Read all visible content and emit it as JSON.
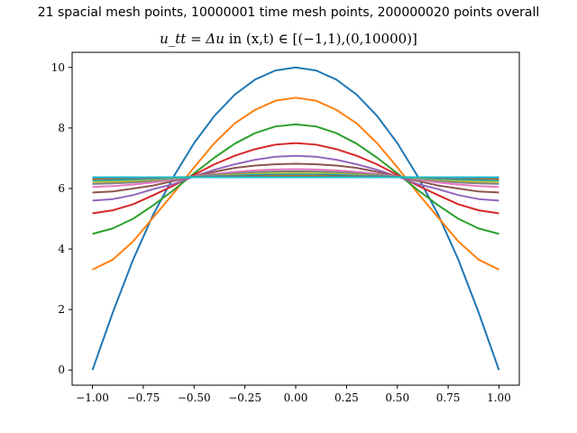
{
  "chart_data": {
    "type": "line",
    "title": "21 spacial mesh points, 10000001 time mesh points, 200000020 points overall",
    "subtitle_math": "u_tt = Δu",
    "subtitle_rest": " in (x,t) ∈ [(−1,1),(0,10000)]",
    "xlabel": "",
    "ylabel": "",
    "xlim": [
      -1.1,
      1.1
    ],
    "ylim": [
      -0.5,
      10.5
    ],
    "xticks": [
      -1.0,
      -0.75,
      -0.5,
      -0.25,
      0.0,
      0.25,
      0.5,
      0.75,
      1.0
    ],
    "xtick_labels": [
      "−1.00",
      "−0.75",
      "−0.50",
      "−0.25",
      "0.00",
      "0.25",
      "0.50",
      "0.75",
      "1.00"
    ],
    "yticks": [
      0,
      2,
      4,
      6,
      8,
      10
    ],
    "ytick_labels": [
      "0",
      "2",
      "4",
      "6",
      "8",
      "10"
    ],
    "grid": false,
    "legend": "none",
    "x": [
      -1.0,
      -0.9,
      -0.8,
      -0.7,
      -0.6,
      -0.5,
      -0.4,
      -0.3,
      -0.2,
      -0.1,
      0.0,
      0.1,
      0.2,
      0.3,
      0.4,
      0.5,
      0.6,
      0.7,
      0.8,
      0.9,
      1.0
    ],
    "series": [
      {
        "color": "#1f77b4",
        "values": [
          0.0,
          1.9,
          3.65,
          5.15,
          6.4,
          7.5,
          8.4,
          9.1,
          9.6,
          9.9,
          10.0,
          9.9,
          9.6,
          9.1,
          8.4,
          7.5,
          6.4,
          5.15,
          3.65,
          1.9,
          0.0
        ]
      },
      {
        "color": "#ff7f0e",
        "values": [
          3.32,
          3.65,
          4.25,
          5.05,
          5.85,
          6.7,
          7.5,
          8.15,
          8.6,
          8.9,
          9.0,
          8.9,
          8.6,
          8.15,
          7.5,
          6.7,
          5.85,
          5.05,
          4.25,
          3.65,
          3.32
        ]
      },
      {
        "color": "#2ca02c",
        "values": [
          4.5,
          4.68,
          5.0,
          5.45,
          5.95,
          6.5,
          7.02,
          7.48,
          7.83,
          8.05,
          8.12,
          8.05,
          7.83,
          7.48,
          7.02,
          6.5,
          5.95,
          5.45,
          5.0,
          4.68,
          4.5
        ]
      },
      {
        "color": "#d62728",
        "values": [
          5.18,
          5.28,
          5.48,
          5.78,
          6.1,
          6.45,
          6.8,
          7.08,
          7.3,
          7.45,
          7.5,
          7.45,
          7.3,
          7.08,
          6.8,
          6.45,
          6.1,
          5.78,
          5.48,
          5.28,
          5.18
        ]
      },
      {
        "color": "#9467bd",
        "values": [
          5.6,
          5.65,
          5.78,
          5.98,
          6.15,
          6.4,
          6.62,
          6.8,
          6.95,
          7.05,
          7.08,
          7.05,
          6.95,
          6.8,
          6.62,
          6.4,
          6.15,
          5.98,
          5.78,
          5.65,
          5.6
        ]
      },
      {
        "color": "#8c564b",
        "values": [
          5.87,
          5.9,
          6.0,
          6.1,
          6.25,
          6.4,
          6.55,
          6.68,
          6.76,
          6.8,
          6.82,
          6.8,
          6.76,
          6.68,
          6.55,
          6.4,
          6.25,
          6.1,
          6.0,
          5.9,
          5.87
        ]
      },
      {
        "color": "#e377c2",
        "values": [
          6.05,
          6.08,
          6.13,
          6.2,
          6.3,
          6.4,
          6.48,
          6.55,
          6.6,
          6.63,
          6.64,
          6.63,
          6.6,
          6.55,
          6.48,
          6.4,
          6.3,
          6.2,
          6.13,
          6.08,
          6.05
        ]
      },
      {
        "color": "#7f7f7f",
        "values": [
          6.15,
          6.17,
          6.2,
          6.26,
          6.33,
          6.39,
          6.45,
          6.5,
          6.54,
          6.56,
          6.57,
          6.56,
          6.54,
          6.5,
          6.45,
          6.39,
          6.33,
          6.26,
          6.2,
          6.17,
          6.15
        ]
      },
      {
        "color": "#bcbd22",
        "values": [
          6.22,
          6.23,
          6.26,
          6.29,
          6.34,
          6.38,
          6.42,
          6.46,
          6.48,
          6.5,
          6.5,
          6.5,
          6.48,
          6.46,
          6.42,
          6.38,
          6.34,
          6.29,
          6.26,
          6.23,
          6.22
        ]
      },
      {
        "color": "#17becf",
        "values": [
          6.27,
          6.28,
          6.3,
          6.32,
          6.35,
          6.38,
          6.41,
          6.43,
          6.45,
          6.46,
          6.46,
          6.46,
          6.45,
          6.43,
          6.41,
          6.38,
          6.35,
          6.32,
          6.3,
          6.28,
          6.27
        ]
      },
      {
        "color": "#1f77b4",
        "values": [
          6.3,
          6.31,
          6.32,
          6.34,
          6.36,
          6.38,
          6.4,
          6.42,
          6.43,
          6.44,
          6.44,
          6.44,
          6.43,
          6.42,
          6.4,
          6.38,
          6.36,
          6.34,
          6.32,
          6.31,
          6.3
        ]
      },
      {
        "color": "#ff7f0e",
        "values": [
          6.32,
          6.33,
          6.34,
          6.35,
          6.36,
          6.38,
          6.39,
          6.4,
          6.41,
          6.42,
          6.42,
          6.42,
          6.41,
          6.4,
          6.39,
          6.38,
          6.36,
          6.35,
          6.34,
          6.33,
          6.32
        ]
      },
      {
        "color": "#2ca02c",
        "values": [
          6.34,
          6.34,
          6.35,
          6.36,
          6.37,
          6.38,
          6.38,
          6.39,
          6.4,
          6.4,
          6.4,
          6.4,
          6.4,
          6.39,
          6.38,
          6.38,
          6.37,
          6.36,
          6.35,
          6.34,
          6.34
        ]
      },
      {
        "color": "#d62728",
        "values": [
          6.35,
          6.35,
          6.36,
          6.36,
          6.37,
          6.37,
          6.38,
          6.38,
          6.39,
          6.39,
          6.39,
          6.39,
          6.39,
          6.38,
          6.38,
          6.37,
          6.37,
          6.36,
          6.36,
          6.35,
          6.35
        ]
      },
      {
        "color": "#9467bd",
        "values": [
          6.36,
          6.36,
          6.36,
          6.37,
          6.37,
          6.37,
          6.38,
          6.38,
          6.38,
          6.38,
          6.38,
          6.38,
          6.38,
          6.38,
          6.38,
          6.37,
          6.37,
          6.37,
          6.36,
          6.36,
          6.36
        ]
      },
      {
        "color": "#8c564b",
        "values": [
          6.36,
          6.36,
          6.37,
          6.37,
          6.37,
          6.37,
          6.37,
          6.38,
          6.38,
          6.38,
          6.38,
          6.38,
          6.38,
          6.38,
          6.37,
          6.37,
          6.37,
          6.37,
          6.37,
          6.36,
          6.36
        ]
      },
      {
        "color": "#e377c2",
        "values": [
          6.37,
          6.37,
          6.37,
          6.37,
          6.37,
          6.37,
          6.37,
          6.37,
          6.37,
          6.37,
          6.37,
          6.37,
          6.37,
          6.37,
          6.37,
          6.37,
          6.37,
          6.37,
          6.37,
          6.37,
          6.37
        ]
      },
      {
        "color": "#7f7f7f",
        "values": [
          6.37,
          6.37,
          6.37,
          6.37,
          6.37,
          6.37,
          6.37,
          6.37,
          6.37,
          6.37,
          6.37,
          6.37,
          6.37,
          6.37,
          6.37,
          6.37,
          6.37,
          6.37,
          6.37,
          6.37,
          6.37
        ]
      },
      {
        "color": "#bcbd22",
        "values": [
          6.37,
          6.37,
          6.37,
          6.37,
          6.37,
          6.37,
          6.37,
          6.37,
          6.37,
          6.37,
          6.37,
          6.37,
          6.37,
          6.37,
          6.37,
          6.37,
          6.37,
          6.37,
          6.37,
          6.37,
          6.37
        ]
      },
      {
        "color": "#17becf",
        "values": [
          6.37,
          6.37,
          6.37,
          6.37,
          6.37,
          6.37,
          6.37,
          6.37,
          6.37,
          6.37,
          6.37,
          6.37,
          6.37,
          6.37,
          6.37,
          6.37,
          6.37,
          6.37,
          6.37,
          6.37,
          6.37
        ]
      }
    ]
  }
}
